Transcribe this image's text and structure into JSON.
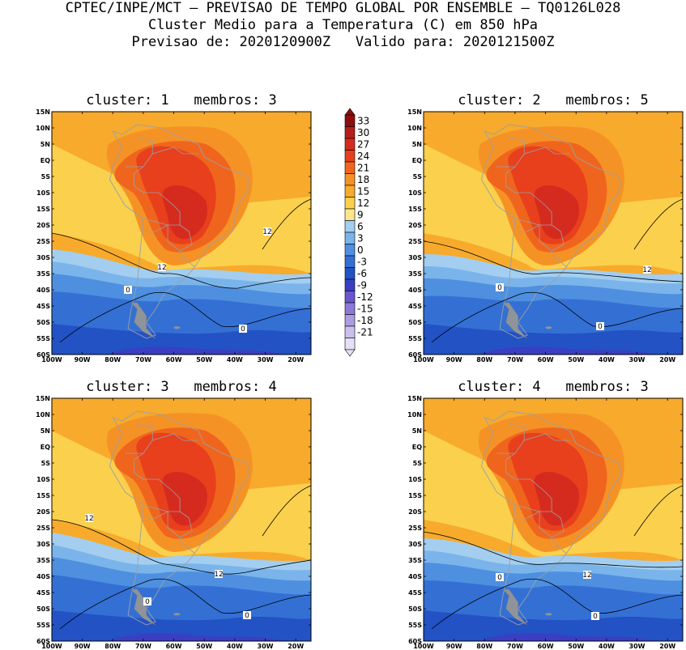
{
  "header": {
    "line1": "CPTEC/INPE/MCT – PREVISAO DE TEMPO GLOBAL POR ENSEMBLE – TQ0126L028",
    "line2": "Cluster Medio para a Temperatura (C) em 850 hPa",
    "line3": "Previsao de: 2020120900Z   Valido para: 2020121500Z"
  },
  "panels": [
    {
      "title": "cluster: 1   membros: 3",
      "contours": [
        "12",
        "12",
        "0",
        "0"
      ]
    },
    {
      "title": "cluster: 2   membros: 5",
      "contours": [
        "12",
        "0",
        "0"
      ]
    },
    {
      "title": "cluster: 3   membros: 4",
      "contours": [
        "12",
        "12",
        "0",
        "0"
      ]
    },
    {
      "title": "cluster: 4   membros: 3",
      "contours": [
        "12",
        "0",
        "0"
      ]
    }
  ],
  "axes": {
    "lat_ticks": [
      "15N",
      "10N",
      "5N",
      "EQ",
      "5S",
      "10S",
      "15S",
      "20S",
      "25S",
      "30S",
      "35S",
      "40S",
      "45S",
      "50S",
      "55S",
      "60S"
    ],
    "lon_ticks": [
      "100W",
      "90W",
      "80W",
      "70W",
      "60W",
      "50W",
      "40W",
      "30W",
      "20W"
    ]
  },
  "colorbar": {
    "labels": [
      "33",
      "30",
      "27",
      "24",
      "21",
      "18",
      "15",
      "12",
      "9",
      "6",
      "3",
      "0",
      "-3",
      "-6",
      "-9",
      "-12",
      "-15",
      "-18",
      "-21"
    ],
    "colors": [
      "#8e0e0e",
      "#b3201c",
      "#d52b1f",
      "#e8401c",
      "#f0651d",
      "#f59226",
      "#f7aa2c",
      "#fbd04c",
      "#fde58a",
      "#a3cef0",
      "#7ab4ea",
      "#4e8fe0",
      "#3470d4",
      "#2352c4",
      "#3a3ec2",
      "#6a57cf",
      "#8c79d9",
      "#ab9de3",
      "#cabfee",
      "#e6e0f6"
    ]
  },
  "colors": {
    "land_border": "#9aa0a8",
    "contour": "#000000"
  }
}
